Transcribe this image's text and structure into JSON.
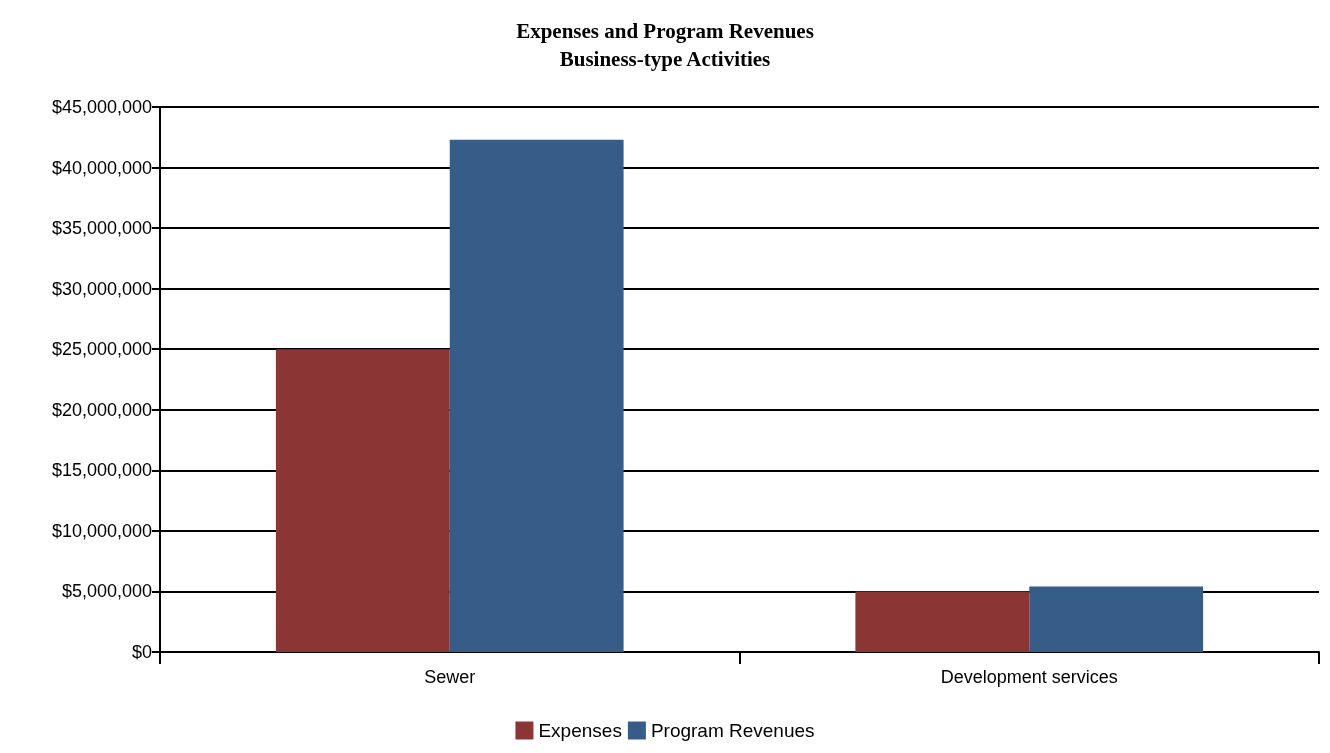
{
  "chart_data": {
    "type": "bar",
    "title": "Expenses and Program Revenues\nBusiness-type Activities",
    "categories": [
      "Sewer",
      "Development services"
    ],
    "series": [
      {
        "name": "Expenses",
        "color": "#8b3535",
        "values": [
          25000000,
          5000000
        ]
      },
      {
        "name": "Program Revenues",
        "color": "#365d87",
        "values": [
          42300000,
          5400000
        ]
      }
    ],
    "ylim": [
      0,
      45000000
    ],
    "yticks": [
      {
        "value": 0,
        "label": "$0"
      },
      {
        "value": 5000000,
        "label": "$5,000,000"
      },
      {
        "value": 10000000,
        "label": "$10,000,000"
      },
      {
        "value": 15000000,
        "label": "$15,000,000"
      },
      {
        "value": 20000000,
        "label": "$20,000,000"
      },
      {
        "value": 25000000,
        "label": "$25,000,000"
      },
      {
        "value": 30000000,
        "label": "$30,000,000"
      },
      {
        "value": 35000000,
        "label": "$35,000,000"
      },
      {
        "value": 40000000,
        "label": "$40,000,000"
      },
      {
        "value": 45000000,
        "label": "$45,000,000"
      }
    ],
    "grid": "y",
    "legend": "bottom"
  }
}
